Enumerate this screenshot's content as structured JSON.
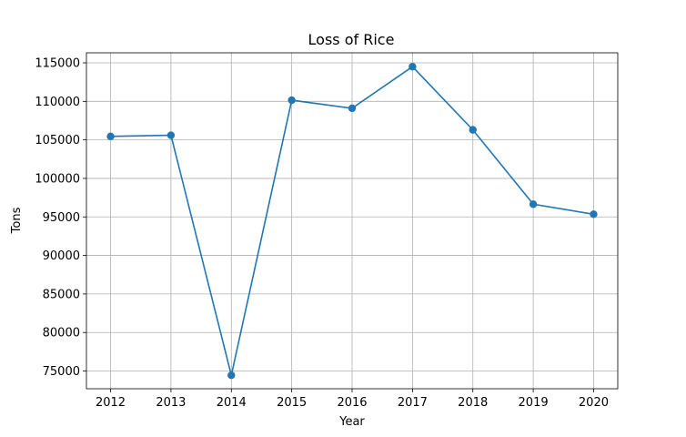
{
  "chart_data": {
    "type": "line",
    "title": "Loss of Rice",
    "xlabel": "Year",
    "ylabel": "Tons",
    "x": [
      2012,
      2013,
      2014,
      2015,
      2016,
      2017,
      2018,
      2019,
      2020
    ],
    "series": [
      {
        "values": [
          105450,
          105600,
          74450,
          110150,
          109100,
          114500,
          106300,
          96650,
          95350
        ],
        "color": "#1f77b4",
        "marker": "circle"
      }
    ],
    "x_ticks": [
      "2012",
      "2013",
      "2014",
      "2015",
      "2016",
      "2017",
      "2018",
      "2019",
      "2020"
    ],
    "y_ticks": [
      "75000",
      "80000",
      "85000",
      "90000",
      "95000",
      "100000",
      "105000",
      "110000",
      "115000"
    ],
    "ylim": [
      72700,
      116300
    ],
    "xlim": [
      2011.6,
      2020.4
    ],
    "grid": true
  }
}
